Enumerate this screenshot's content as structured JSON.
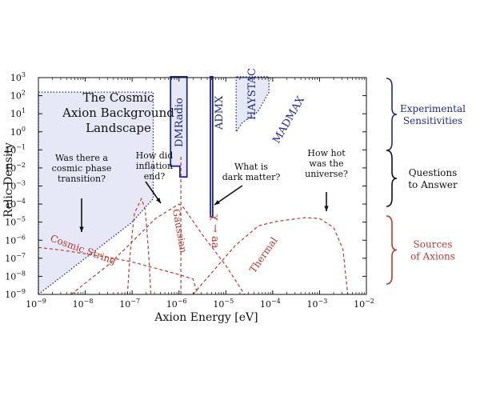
{
  "chart_data": {
    "type": "line",
    "title": "The Cosmic Axion Background Landscape",
    "title_lines": [
      "The Cosmic",
      "Axion Background",
      "Landscape"
    ],
    "xlabel": "Axion Energy [eV]",
    "ylabel": "Relic Density",
    "x_scale": "log",
    "y_scale": "log",
    "xlim_exp": [
      -9,
      -2
    ],
    "ylim_exp": [
      -9,
      3
    ],
    "x_ticks": [
      {
        "base": "10",
        "exp": "−9"
      },
      {
        "base": "10",
        "exp": "−8"
      },
      {
        "base": "10",
        "exp": "−7"
      },
      {
        "base": "10",
        "exp": "−6"
      },
      {
        "base": "10",
        "exp": "−5"
      },
      {
        "base": "10",
        "exp": "−4"
      },
      {
        "base": "10",
        "exp": "−3"
      },
      {
        "base": "10",
        "exp": "−2"
      }
    ],
    "y_ticks": [
      {
        "base": "10",
        "exp": "3"
      },
      {
        "base": "10",
        "exp": "2"
      },
      {
        "base": "10",
        "exp": "1"
      },
      {
        "base": "10",
        "exp": "0"
      },
      {
        "base": "10",
        "exp": "−1"
      },
      {
        "base": "10",
        "exp": "−2"
      },
      {
        "base": "10",
        "exp": "−3"
      },
      {
        "base": "10",
        "exp": "−4"
      },
      {
        "base": "10",
        "exp": "−5"
      },
      {
        "base": "10",
        "exp": "−6"
      },
      {
        "base": "10",
        "exp": "−7"
      },
      {
        "base": "10",
        "exp": "−8"
      },
      {
        "base": "10",
        "exp": "−9"
      }
    ],
    "experiments": [
      {
        "name": "DMRadio",
        "style": "dotted",
        "boundary": [
          [
            -9,
            -9
          ],
          [
            -7.0,
            -5.0
          ],
          [
            -6.55,
            -3.7
          ],
          [
            -6.55,
            2.2
          ],
          [
            -9,
            2.2
          ]
        ]
      },
      {
        "name": "ADMX",
        "style": "solid",
        "boundary": [
          [
            -6.18,
            3.05
          ],
          [
            -6.18,
            -1.9
          ],
          [
            -5.98,
            -1.9
          ],
          [
            -5.98,
            -2.5
          ],
          [
            -5.83,
            -2.5
          ],
          [
            -5.83,
            3.05
          ]
        ]
      },
      {
        "name": "HAYSTAC",
        "style": "solid",
        "boundary": [
          [
            -5.33,
            3.05
          ],
          [
            -5.33,
            -4.7
          ],
          [
            -5.28,
            -4.7
          ],
          [
            -5.28,
            3.05
          ]
        ]
      },
      {
        "name": "MADMAX",
        "style": "dotted",
        "boundary": [
          [
            -4.78,
            3.05
          ],
          [
            -4.78,
            0.0
          ],
          [
            -4.65,
            0.5
          ],
          [
            -4.32,
            1.1
          ],
          [
            -4.08,
            2.2
          ],
          [
            -4.08,
            3.05
          ]
        ]
      }
    ],
    "series": [
      {
        "name": "Cosmic String",
        "style": "dashed",
        "points": [
          [
            -9,
            -6.4
          ],
          [
            -8.5,
            -6.55
          ],
          [
            -8,
            -6.75
          ],
          [
            -7.5,
            -6.95
          ],
          [
            -7,
            -7.2
          ],
          [
            -6.5,
            -7.55
          ],
          [
            -6,
            -7.9
          ],
          [
            -5.7,
            -8.15
          ],
          [
            -5.6,
            -9
          ]
        ]
      },
      {
        "name": "Gaussian",
        "style": "dashed",
        "points": [
          [
            -7.1,
            -9
          ],
          [
            -7.05,
            -7.0
          ],
          [
            -7.0,
            -5.7
          ],
          [
            -6.95,
            -4.5
          ],
          [
            -6.8,
            -3.7
          ],
          [
            -6.72,
            -4.3
          ],
          [
            -6.68,
            -5.6
          ],
          [
            -6.64,
            -7.0
          ],
          [
            -6.6,
            -9
          ]
        ]
      },
      {
        "name": "χ → aa",
        "style": "dashed",
        "points": [
          [
            -8.3,
            -9
          ],
          [
            -7.5,
            -7.35
          ],
          [
            -7,
            -6.1
          ],
          [
            -6.5,
            -4.8
          ],
          [
            -6.0,
            -4.0
          ],
          [
            -5.9,
            -4.2
          ],
          [
            -5.5,
            -5.7
          ],
          [
            -5.0,
            -7.4
          ],
          [
            -4.6,
            -9
          ]
        ]
      },
      {
        "name": "χ → aa (vertical)",
        "style": "dashed",
        "points": [
          [
            -5.96,
            -9
          ],
          [
            -5.96,
            -1.3
          ]
        ]
      },
      {
        "name": "Thermal",
        "style": "dashed",
        "points": [
          [
            -5.7,
            -9
          ],
          [
            -5.3,
            -7.8
          ],
          [
            -4.8,
            -6.3
          ],
          [
            -4.3,
            -5.2
          ],
          [
            -3.9,
            -4.95
          ],
          [
            -3.3,
            -4.75
          ],
          [
            -3.0,
            -4.8
          ],
          [
            -2.7,
            -5.3
          ],
          [
            -2.5,
            -6.5
          ],
          [
            -2.4,
            -9
          ]
        ]
      }
    ],
    "labels": {
      "dmradio": "DMRadio",
      "admx": "ADMX",
      "haystac": "HAYSTAC",
      "madmax": "MADMAX",
      "cosmic_string": "Cosmic String",
      "gaussian": "Gaussian",
      "chi_aa": "χ → aa",
      "thermal": "Thermal"
    },
    "questions": [
      {
        "lines": [
          "Was there a",
          "cosmic phase",
          "transition?"
        ]
      },
      {
        "lines": [
          "How did",
          "inflation",
          "end?"
        ]
      },
      {
        "lines": [
          "What is",
          "dark matter?"
        ]
      },
      {
        "lines": [
          "How hot",
          "was the",
          "universe?"
        ]
      }
    ],
    "brackets": [
      {
        "lines": [
          "Experimental",
          "Sensitivities"
        ],
        "color": "#1f2a8a"
      },
      {
        "lines": [
          "Questions",
          "to Answer"
        ],
        "color": "#111111"
      },
      {
        "lines": [
          "Sources",
          "of Axions"
        ],
        "color": "#b83a32"
      }
    ],
    "colors": {
      "experiment": "#1f2a8a",
      "experiment_fill": "#e6e8f6",
      "source": "#b83a32",
      "axis": "#111111"
    }
  }
}
